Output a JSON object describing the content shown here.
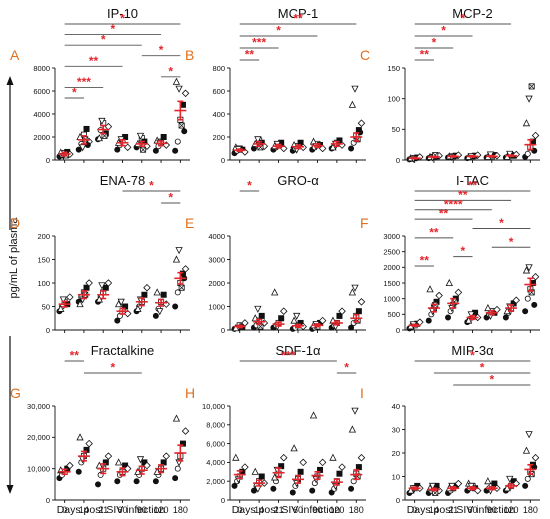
{
  "figure": {
    "ylabel": "pg/mL of plasma",
    "xlabel": "Days post SIV infection"
  },
  "chart_data": [
    {
      "panel": "A",
      "title": "IP-10",
      "type": "scatter",
      "x": [
        "0",
        "14",
        "21",
        "60",
        "90",
        "120",
        "180"
      ],
      "ylim": [
        0,
        8000
      ],
      "yticks": [
        0,
        2000,
        4000,
        6000,
        8000
      ],
      "yticklabels": [
        "0",
        "2000",
        "4000",
        "6000",
        "8000"
      ],
      "means": [
        520,
        1750,
        2650,
        1500,
        1400,
        1450,
        4300
      ],
      "sem": [
        150,
        350,
        350,
        250,
        200,
        200,
        800
      ],
      "points": [
        [
          300,
          450,
          600,
          700,
          500,
          650,
          350,
          400
        ],
        [
          900,
          1400,
          2200,
          2700,
          1600,
          2000,
          1100,
          1800,
          1300
        ],
        [
          1800,
          2600,
          3200,
          2300,
          2900,
          1900,
          3400,
          2100
        ],
        [
          900,
          1300,
          1700,
          2000,
          1100,
          1500,
          1800
        ],
        [
          1100,
          1300,
          1900,
          1600,
          1200,
          1400,
          2100,
          900
        ],
        [
          800,
          1200,
          1600,
          2000,
          1300,
          1700,
          1500
        ],
        [
          800,
          1600,
          3500,
          4800,
          5800,
          6800,
          6200,
          3000,
          2500
        ]
      ],
      "significance": [
        {
          "from": 0,
          "to": 6,
          "label": "*"
        },
        {
          "from": 0,
          "to": 5,
          "label": "*"
        },
        {
          "from": 0,
          "to": 4,
          "label": "*"
        },
        {
          "from": 4,
          "to": 6,
          "label": "*"
        },
        {
          "from": 0,
          "to": 3,
          "label": "**"
        },
        {
          "from": 5,
          "to": 6,
          "label": "*"
        },
        {
          "from": 0,
          "to": 2,
          "label": "***"
        },
        {
          "from": 0,
          "to": 1,
          "label": "*"
        }
      ]
    },
    {
      "panel": "B",
      "title": "MCP-1",
      "type": "scatter",
      "x": [
        "0",
        "14",
        "21",
        "60",
        "90",
        "120",
        "180"
      ],
      "ylim": [
        0,
        800
      ],
      "yticks": [
        0,
        200,
        400,
        600,
        800
      ],
      "yticklabels": [
        "0",
        "200",
        "400",
        "600",
        "800"
      ],
      "means": [
        85,
        140,
        120,
        115,
        125,
        140,
        200
      ],
      "sem": [
        10,
        20,
        15,
        15,
        15,
        20,
        35
      ],
      "points": [
        [
          60,
          80,
          100,
          90,
          70,
          110,
          95
        ],
        [
          100,
          130,
          170,
          150,
          120,
          140,
          180,
          110
        ],
        [
          90,
          110,
          130,
          150,
          100,
          120,
          140
        ],
        [
          80,
          100,
          120,
          150,
          110,
          130,
          90
        ],
        [
          90,
          110,
          140,
          130,
          100,
          160,
          120
        ],
        [
          100,
          120,
          150,
          170,
          130,
          110,
          140
        ],
        [
          100,
          150,
          210,
          260,
          320,
          480,
          620,
          180,
          240
        ]
      ],
      "significance": [
        {
          "from": 0,
          "to": 6,
          "label": "**"
        },
        {
          "from": 0,
          "to": 4,
          "label": "*"
        },
        {
          "from": 0,
          "to": 2,
          "label": "***"
        },
        {
          "from": 0,
          "to": 1,
          "label": "**"
        }
      ]
    },
    {
      "panel": "C",
      "title": "MCP-2",
      "type": "scatter",
      "x": [
        "0",
        "14",
        "21",
        "60",
        "90",
        "120",
        "180"
      ],
      "ylim": [
        0,
        150
      ],
      "yticks": [
        0,
        50,
        100,
        150
      ],
      "yticklabels": [
        "0",
        "50",
        "100",
        "150"
      ],
      "means": [
        3,
        5,
        6,
        6,
        6,
        7,
        25
      ],
      "sem": [
        1,
        1,
        1,
        1,
        1,
        1,
        8
      ],
      "points": [
        [
          1,
          2,
          3,
          4,
          5,
          3,
          2
        ],
        [
          3,
          4,
          5,
          6,
          7,
          5,
          4,
          8
        ],
        [
          4,
          5,
          6,
          7,
          8,
          6,
          5
        ],
        [
          3,
          5,
          6,
          7,
          8,
          5,
          6
        ],
        [
          4,
          5,
          6,
          8,
          7,
          5,
          9
        ],
        [
          4,
          6,
          8,
          7,
          9,
          5,
          10
        ],
        [
          5,
          10,
          20,
          30,
          40,
          60,
          100,
          120,
          15
        ]
      ],
      "significance": [
        {
          "from": 0,
          "to": 5,
          "label": "*"
        },
        {
          "from": 0,
          "to": 3,
          "label": "*"
        },
        {
          "from": 0,
          "to": 2,
          "label": "*"
        },
        {
          "from": 0,
          "to": 1,
          "label": "**"
        }
      ]
    },
    {
      "panel": "D",
      "title": "ENA-78",
      "type": "scatter",
      "x": [
        "0",
        "14",
        "21",
        "60",
        "90",
        "120",
        "180"
      ],
      "ylim": [
        0,
        200
      ],
      "yticks": [
        0,
        50,
        100,
        150,
        200
      ],
      "yticklabels": [
        "0",
        "50",
        "100",
        "150",
        "200"
      ],
      "means": [
        55,
        75,
        75,
        40,
        60,
        58,
        110
      ],
      "sem": [
        6,
        8,
        8,
        6,
        8,
        7,
        12
      ],
      "points": [
        [
          40,
          50,
          60,
          55,
          70,
          45,
          65
        ],
        [
          60,
          70,
          80,
          90,
          100,
          55,
          65,
          75
        ],
        [
          60,
          70,
          80,
          90,
          100,
          65,
          95
        ],
        [
          20,
          30,
          40,
          50,
          35,
          55,
          60
        ],
        [
          40,
          50,
          60,
          75,
          90,
          45,
          65
        ],
        [
          30,
          45,
          60,
          75,
          55,
          80,
          40
        ],
        [
          50,
          80,
          100,
          120,
          130,
          150,
          170,
          90,
          110
        ]
      ],
      "significance": [
        {
          "from": 3,
          "to": 6,
          "label": "*"
        },
        {
          "from": 5,
          "to": 6,
          "label": "*"
        }
      ]
    },
    {
      "panel": "E",
      "title": "GRO-α",
      "type": "scatter",
      "x": [
        "0",
        "14",
        "21",
        "60",
        "90",
        "120",
        "180"
      ],
      "ylim": [
        0,
        4000
      ],
      "yticks": [
        0,
        1000,
        2000,
        3000,
        4000
      ],
      "yticklabels": [
        "0",
        "1000",
        "2000",
        "3000",
        "4000"
      ],
      "means": [
        150,
        350,
        250,
        180,
        200,
        300,
        500
      ],
      "sem": [
        50,
        100,
        80,
        60,
        60,
        80,
        150
      ],
      "points": [
        [
          50,
          100,
          200,
          150,
          300,
          80
        ],
        [
          100,
          200,
          400,
          600,
          300,
          500,
          900,
          150
        ],
        [
          100,
          200,
          300,
          500,
          800,
          1600,
          150
        ],
        [
          50,
          100,
          200,
          300,
          150,
          400,
          600
        ],
        [
          50,
          100,
          150,
          300,
          400,
          200,
          250
        ],
        [
          100,
          200,
          300,
          600,
          800,
          400,
          150
        ],
        [
          100,
          300,
          600,
          800,
          1200,
          1600,
          1800,
          400
        ]
      ],
      "significance": [
        {
          "from": 0,
          "to": 1,
          "label": "*"
        }
      ]
    },
    {
      "panel": "F",
      "title": "I-TAC",
      "type": "scatter",
      "x": [
        "0",
        "14",
        "21",
        "60",
        "90",
        "120",
        "180"
      ],
      "ylim": [
        0,
        3000
      ],
      "yticks": [
        0,
        500,
        1000,
        1500,
        2000,
        2500,
        3000
      ],
      "yticklabels": [
        "0",
        "500",
        "1000",
        "1500",
        "2000",
        "2500",
        "3000"
      ],
      "means": [
        150,
        700,
        850,
        400,
        550,
        700,
        1450
      ],
      "sem": [
        30,
        120,
        150,
        60,
        60,
        100,
        200
      ],
      "points": [
        [
          50,
          100,
          150,
          200,
          250,
          120,
          180
        ],
        [
          300,
          500,
          700,
          900,
          1100,
          1300,
          600,
          800
        ],
        [
          400,
          600,
          800,
          1000,
          1200,
          1500,
          700,
          900
        ],
        [
          250,
          350,
          450,
          550,
          400,
          300,
          500
        ],
        [
          400,
          500,
          600,
          550,
          650,
          700,
          450
        ],
        [
          400,
          550,
          700,
          850,
          950,
          600,
          750
        ],
        [
          600,
          1000,
          1300,
          1500,
          1700,
          1900,
          2000,
          1200,
          800
        ]
      ],
      "significance": [
        {
          "from": 0,
          "to": 6,
          "label": "**"
        },
        {
          "from": 0,
          "to": 5,
          "label": "**"
        },
        {
          "from": 0,
          "to": 4,
          "label": "****"
        },
        {
          "from": 0,
          "to": 3,
          "label": "**"
        },
        {
          "from": 3,
          "to": 6,
          "label": "*"
        },
        {
          "from": 0,
          "to": 2,
          "label": "**"
        },
        {
          "from": 4,
          "to": 6,
          "label": "*"
        },
        {
          "from": 2,
          "to": 3,
          "label": "*"
        },
        {
          "from": 0,
          "to": 1,
          "label": "**"
        }
      ]
    },
    {
      "panel": "G",
      "title": "Fractalkine",
      "type": "scatter",
      "x": [
        "0",
        "14",
        "21",
        "60",
        "90",
        "120",
        "180"
      ],
      "ylim": [
        0,
        30000
      ],
      "yticks": [
        0,
        10000,
        20000,
        30000
      ],
      "yticklabels": [
        "0",
        "10,000",
        "20,000",
        "30,000"
      ],
      "means": [
        9000,
        14000,
        10000,
        9000,
        9500,
        10000,
        15000
      ],
      "sem": [
        800,
        1500,
        1500,
        1200,
        1200,
        1200,
        2500
      ],
      "points": [
        [
          7000,
          8000,
          9000,
          10000,
          11000,
          9500
        ],
        [
          9000,
          12000,
          14000,
          16000,
          18000,
          20000,
          13000
        ],
        [
          5000,
          8000,
          10000,
          12000,
          14000,
          11000
        ],
        [
          6000,
          8000,
          9000,
          11000,
          10000,
          12000
        ],
        [
          6000,
          8000,
          10000,
          12000,
          11000,
          9000,
          13000
        ],
        [
          6000,
          8000,
          10000,
          12000,
          14000,
          9000
        ],
        [
          7000,
          10000,
          14000,
          18000,
          22000,
          26000,
          12000
        ]
      ],
      "significance": [
        {
          "from": 0,
          "to": 1,
          "label": "**"
        },
        {
          "from": 1,
          "to": 4,
          "label": "*"
        }
      ]
    },
    {
      "panel": "H",
      "title": "SDF-1α",
      "type": "scatter",
      "x": [
        "0",
        "14",
        "21",
        "60",
        "90",
        "120",
        "180"
      ],
      "ylim": [
        0,
        10000
      ],
      "yticks": [
        0,
        2000,
        4000,
        6000,
        8000,
        10000
      ],
      "yticklabels": [
        "0",
        "2,000",
        "4,000",
        "6,000",
        "8,000",
        "10,000"
      ],
      "means": [
        2700,
        1800,
        2900,
        2200,
        2600,
        1900,
        2700
      ],
      "sem": [
        400,
        300,
        500,
        400,
        400,
        300,
        500
      ],
      "points": [
        [
          1500,
          2000,
          2500,
          3000,
          3500,
          4500,
          2200
        ],
        [
          1000,
          1500,
          2000,
          2500,
          1800,
          3000,
          1200
        ],
        [
          1200,
          2000,
          2800,
          3600,
          4500,
          2400,
          3200
        ],
        [
          800,
          1500,
          2200,
          3000,
          4000,
          5500,
          1800
        ],
        [
          1000,
          1800,
          2500,
          3200,
          4000,
          9000,
          2200
        ],
        [
          800,
          1200,
          2000,
          2800,
          3500,
          4500,
          1500
        ],
        [
          1200,
          2000,
          2800,
          3500,
          4500,
          7500,
          9500,
          2500
        ]
      ],
      "significance": [
        {
          "from": 0,
          "to": 5,
          "label": "***"
        },
        {
          "from": 5,
          "to": 6,
          "label": "*"
        }
      ]
    },
    {
      "panel": "I",
      "title": "MIP-3α",
      "type": "scatter",
      "x": [
        "0",
        "14",
        "21",
        "60",
        "90",
        "120",
        "180"
      ],
      "ylim": [
        0,
        40
      ],
      "yticks": [
        0,
        10,
        20,
        30,
        40
      ],
      "yticklabels": [
        "0",
        "10",
        "20",
        "30",
        "40"
      ],
      "means": [
        5,
        4.5,
        5,
        5,
        5,
        6,
        13
      ],
      "sem": [
        0.5,
        0.5,
        0.6,
        0.6,
        0.6,
        0.8,
        2
      ],
      "points": [
        [
          3,
          4,
          5,
          6,
          5,
          4,
          5
        ],
        [
          3,
          4,
          5,
          6,
          4,
          5,
          6,
          3
        ],
        [
          3,
          4,
          5,
          6,
          7,
          5,
          6
        ],
        [
          4,
          5,
          6,
          5,
          4,
          7,
          6
        ],
        [
          4,
          5,
          6,
          7,
          5,
          8,
          4
        ],
        [
          4,
          5,
          6,
          8,
          7,
          5,
          9
        ],
        [
          6,
          9,
          12,
          15,
          18,
          21,
          28,
          11,
          14
        ]
      ],
      "significance": [
        {
          "from": 0,
          "to": 6,
          "label": "*"
        },
        {
          "from": 1,
          "to": 6,
          "label": "*"
        },
        {
          "from": 2,
          "to": 6,
          "label": "*"
        }
      ]
    }
  ]
}
